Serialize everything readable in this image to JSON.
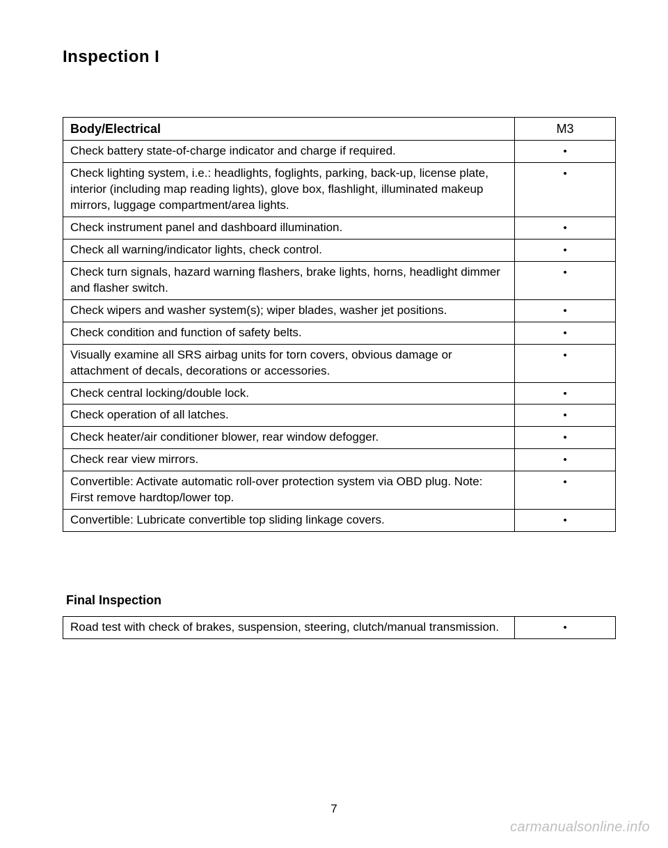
{
  "page": {
    "title": "Inspection I",
    "number": "7",
    "watermark": "carmanualsonline.info"
  },
  "body_electrical": {
    "section_label": "Body/Electrical",
    "column_header": "M3",
    "rows": [
      {
        "desc": "Check battery state-of-charge indicator and charge if required.",
        "mark": "•"
      },
      {
        "desc": "Check lighting system, i.e.: headlights, foglights, parking, back-up, license plate, interior (including map reading lights), glove box, flashlight, illuminated makeup mirrors, luggage compartment/area lights.",
        "mark": "•"
      },
      {
        "desc": "Check instrument panel and dashboard illumination.",
        "mark": "•"
      },
      {
        "desc": "Check all warning/indicator lights, check control.",
        "mark": "•"
      },
      {
        "desc": "Check turn signals, hazard warning flashers, brake lights, horns, headlight dimmer and flasher switch.",
        "mark": "•"
      },
      {
        "desc": "Check wipers and washer system(s); wiper blades, washer jet positions.",
        "mark": "•"
      },
      {
        "desc": "Check condition and function of safety belts.",
        "mark": "•"
      },
      {
        "desc": "Visually examine all SRS airbag units for torn covers, obvious damage or attachment of decals, decorations or accessories.",
        "mark": "•"
      },
      {
        "desc": "Check central locking/double lock.",
        "mark": "•"
      },
      {
        "desc": "Check operation of all latches.",
        "mark": "•"
      },
      {
        "desc": "Check heater/air conditioner blower, rear window defogger.",
        "mark": "•"
      },
      {
        "desc": "Check rear view mirrors.",
        "mark": "•"
      },
      {
        "desc": "Convertible: Activate automatic roll-over protection system via OBD plug. Note: First remove hardtop/lower top.",
        "mark": "•"
      },
      {
        "desc": "Convertible: Lubricate convertible top sliding linkage covers.",
        "mark": "•"
      }
    ]
  },
  "final_inspection": {
    "section_label": "Final Inspection",
    "rows": [
      {
        "desc": "Road test with check of brakes, suspension, steering, clutch/manual transmission.",
        "mark": "•"
      }
    ]
  }
}
